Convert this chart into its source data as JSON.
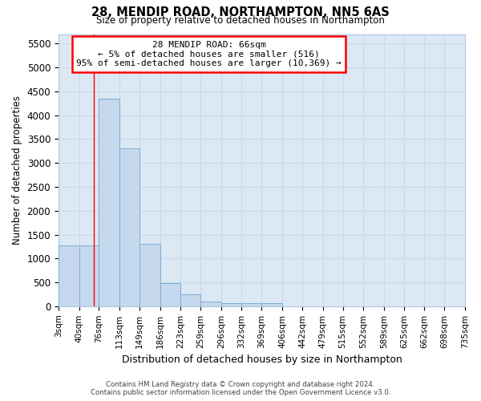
{
  "title1": "28, MENDIP ROAD, NORTHAMPTON, NN5 6AS",
  "title2": "Size of property relative to detached houses in Northampton",
  "xlabel": "Distribution of detached houses by size in Northampton",
  "ylabel": "Number of detached properties",
  "footer1": "Contains HM Land Registry data © Crown copyright and database right 2024.",
  "footer2": "Contains public sector information licensed under the Open Government Licence v3.0.",
  "annotation_title": "28 MENDIP ROAD: 66sqm",
  "annotation_line1": "← 5% of detached houses are smaller (516)",
  "annotation_line2": "95% of semi-detached houses are larger (10,369) →",
  "bar_color": "#c5d8ee",
  "bar_edge_color": "#7aafd4",
  "bg_color": "#dce9f5",
  "red_line_x": 66,
  "bins": [
    3,
    40,
    76,
    113,
    149,
    186,
    223,
    259,
    296,
    332,
    369,
    406,
    442,
    479,
    515,
    552,
    589,
    625,
    662,
    698,
    735
  ],
  "values": [
    1280,
    1280,
    4340,
    3300,
    1300,
    480,
    250,
    100,
    60,
    60,
    60,
    0,
    0,
    0,
    0,
    0,
    0,
    0,
    0,
    0
  ],
  "ylim": [
    0,
    5700
  ],
  "yticks": [
    0,
    500,
    1000,
    1500,
    2000,
    2500,
    3000,
    3500,
    4000,
    4500,
    5000,
    5500
  ],
  "annotation_box_color": "white",
  "annotation_box_edge": "red",
  "grid_color": "#c8d8ec"
}
